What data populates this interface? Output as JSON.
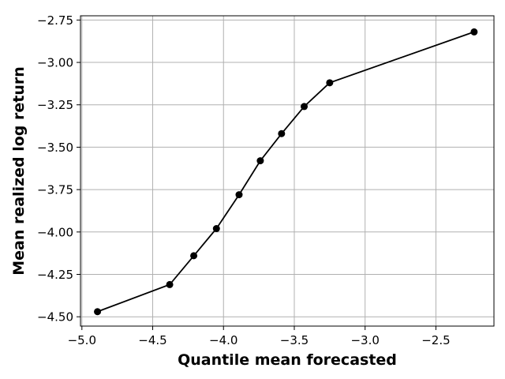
{
  "chart_data": {
    "type": "line",
    "title": "",
    "xlabel": "Quantile mean forecasted",
    "ylabel": "Mean realized log return",
    "xlim": [
      -5.01,
      -2.09
    ],
    "ylim": [
      -4.555,
      -2.725
    ],
    "xticks": [
      -5.0,
      -4.5,
      -4.0,
      -3.5,
      -3.0,
      -2.5
    ],
    "xtick_labels": [
      "−5.0",
      "−4.5",
      "−4.0",
      "−3.5",
      "−3.0",
      "−2.5"
    ],
    "yticks": [
      -2.75,
      -3.0,
      -3.25,
      -3.5,
      -3.75,
      -4.0,
      -4.25,
      -4.5
    ],
    "ytick_labels": [
      "−2.75",
      "−3.00",
      "−3.25",
      "−3.50",
      "−3.75",
      "−4.00",
      "−4.25",
      "−4.50"
    ],
    "grid": true,
    "series": [
      {
        "color": "#000000",
        "marker": "circle",
        "x": [
          -4.89,
          -4.38,
          -4.21,
          -4.05,
          -3.89,
          -3.74,
          -3.59,
          -3.43,
          -3.25,
          -2.23
        ],
        "y": [
          -4.47,
          -4.31,
          -4.14,
          -3.98,
          -3.78,
          -3.58,
          -3.42,
          -3.26,
          -3.12,
          -2.82
        ]
      }
    ]
  }
}
